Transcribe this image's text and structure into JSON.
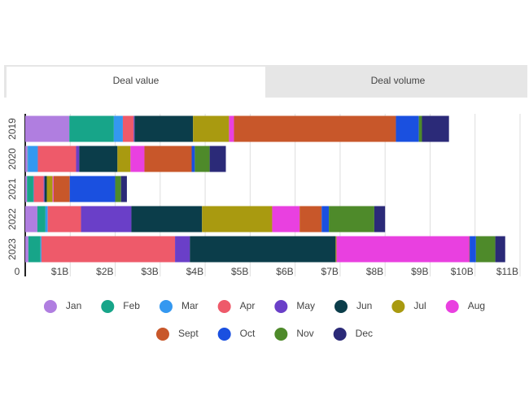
{
  "tabs": [
    "Deal value",
    "Deal volume"
  ],
  "chart_data": {
    "type": "stacked-bar-horizontal",
    "categories": [
      "2019",
      "2020",
      "2021",
      "2022",
      "2023"
    ],
    "series": [
      {
        "name": "Jan",
        "color": "#b07ee0",
        "values": [
          0.98,
          0.05,
          0.04,
          0.27,
          0.07
        ]
      },
      {
        "name": "Feb",
        "color": "#17a589",
        "values": [
          0.99,
          0.01,
          0.14,
          0.18,
          0.27
        ]
      },
      {
        "name": "Mar",
        "color": "#3498f0",
        "values": [
          0.2,
          0.22,
          0.01,
          0.05,
          0.02
        ]
      },
      {
        "name": "Apr",
        "color": "#ee5a6a",
        "values": [
          0.24,
          0.85,
          0.22,
          0.74,
          2.97
        ]
      },
      {
        "name": "May",
        "color": "#6a3fc8",
        "values": [
          0.02,
          0.07,
          0.02,
          1.12,
          0.33
        ]
      },
      {
        "name": "Jun",
        "color": "#0b3d4a",
        "values": [
          1.3,
          0.85,
          0.05,
          1.57,
          3.24
        ]
      },
      {
        "name": "Jul",
        "color": "#a99a10",
        "values": [
          0.8,
          0.29,
          0.13,
          1.56,
          0.02
        ]
      },
      {
        "name": "Aug",
        "color": "#e940e0",
        "values": [
          0.11,
          0.31,
          0.02,
          0.61,
          2.95
        ]
      },
      {
        "name": "Sept",
        "color": "#c8572a",
        "values": [
          3.6,
          1.05,
          0.36,
          0.49,
          0.01
        ]
      },
      {
        "name": "Oct",
        "color": "#1a50e0",
        "values": [
          0.51,
          0.07,
          1.01,
          0.16,
          0.14
        ]
      },
      {
        "name": "Nov",
        "color": "#4e8a2a",
        "values": [
          0.07,
          0.33,
          0.13,
          1.01,
          0.43
        ]
      },
      {
        "name": "Dec",
        "color": "#2b2a78",
        "values": [
          0.6,
          0.36,
          0.13,
          0.24,
          0.22
        ]
      }
    ],
    "xlim": [
      0,
      11
    ],
    "xticks": [
      0,
      {
        "value": 1,
        "label": "$1B"
      },
      {
        "value": 2,
        "label": "$2B"
      },
      {
        "value": 3,
        "label": "$3B"
      },
      {
        "value": 4,
        "label": "$4B"
      },
      {
        "value": 5,
        "label": "$5B"
      },
      {
        "value": 6,
        "label": "$6B"
      },
      {
        "value": 7,
        "label": "$7B"
      },
      {
        "value": 8,
        "label": "$8B"
      },
      {
        "value": 9,
        "label": "$9B"
      },
      {
        "value": 10,
        "label": "$10B"
      },
      {
        "value": 11,
        "label": "$11B"
      }
    ],
    "grid": true
  }
}
